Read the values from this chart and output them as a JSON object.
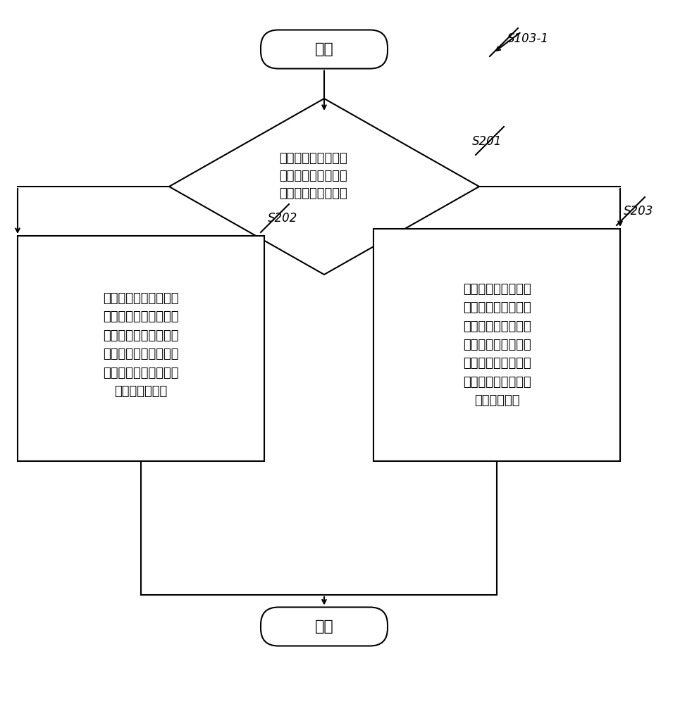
{
  "bg_color": "#ffffff",
  "line_color": "#000000",
  "text_color": "#000000",
  "font_size_main": 14,
  "font_size_label": 12,
  "start_text": "开始",
  "end_text": "结束",
  "diamond_text": "判断当前时间距离抽\n奖开始的时长是否超\n过所述第二预设时长",
  "box_left_text": "若否，根据预估的一第\n四预设时长内的一第二\n参与次数确定当前的中\n奖概率，其中，所述第\n四预设时长小于等于所\n述第二预设时长",
  "box_right_text": "若是，根据抽奖开始\n后的一第三预设时长\n内的一第一参与次数\n确定当前的中奖概率\n，其中，所述第三预\n设时长小于等于所述\n第二预设时长",
  "label_s103": "S103-1",
  "label_s201": "S201",
  "label_s202": "S202",
  "label_s203": "S203"
}
